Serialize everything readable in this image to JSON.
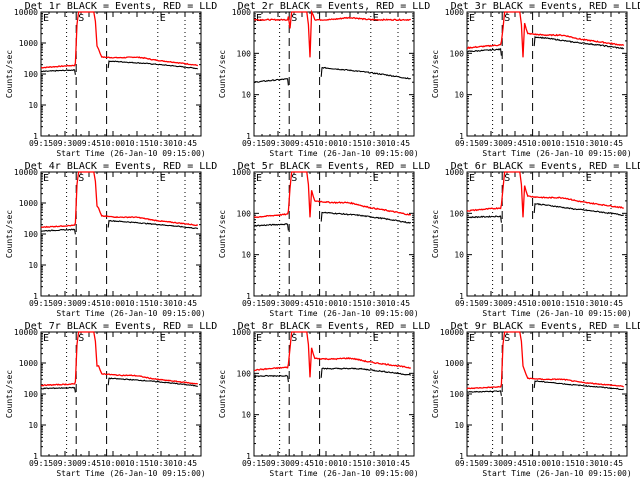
{
  "chart_data": {
    "type": "line",
    "layout": "3x3 grid",
    "title_suffix": "BLACK = Events, RED = LLD",
    "xlabel": "Start Time (26-Jan-10 09:15:00)",
    "ylabel": "Counts/sec",
    "x_range_minutes": [
      0,
      100
    ],
    "x_tick_labels": [
      "09:15",
      "09:30",
      "09:45",
      "10:00",
      "10:15",
      "10:30",
      "10:45"
    ],
    "x_tick_minutes": [
      0,
      15,
      30,
      45,
      60,
      75,
      90
    ],
    "yscale": "log",
    "markers": {
      "dotted_minutes": [
        16,
        73,
        90
      ],
      "dashed_minutes": [
        22,
        41
      ],
      "labels": [
        {
          "text": "E",
          "minute": 0
        },
        {
          "text": "S",
          "minute": 22
        },
        {
          "text": "E",
          "minute": 73
        }
      ]
    },
    "series_colors": {
      "events": "#000000",
      "lld": "#ff0000"
    },
    "legend": {
      "events": "BLACK = Events",
      "lld": "RED = LLD"
    },
    "panels": [
      {
        "title": "Det 1r",
        "ylim": [
          1,
          10000
        ],
        "y_tick_labels": [
          "1",
          "10",
          "100",
          "1000",
          "10000"
        ],
        "lld": {
          "pre": [
            160,
            190
          ],
          "peak": 10000,
          "post_start": 350,
          "mid": 300,
          "end": 190
        },
        "events": {
          "pre": [
            120,
            135
          ],
          "post_start": 260,
          "mid": 220,
          "end": 150
        }
      },
      {
        "title": "Det 2r",
        "ylim": [
          1,
          1000
        ],
        "y_tick_labels": [
          "1",
          "10",
          "100",
          "1000"
        ],
        "lld": {
          "pre": [
            650,
            650
          ],
          "peak": 1000,
          "post_start": 650,
          "mid": 650,
          "end": 650
        },
        "events": {
          "pre": [
            20,
            24
          ],
          "post_start": 45,
          "mid": 37,
          "end": 24
        }
      },
      {
        "title": "Det 3r",
        "ylim": [
          1,
          1000
        ],
        "y_tick_labels": [
          "1",
          "10",
          "100",
          "1000"
        ],
        "lld": {
          "pre": [
            135,
            160
          ],
          "peak": 1000,
          "post_start": 300,
          "mid": 230,
          "end": 155
        },
        "events": {
          "pre": [
            110,
            125
          ],
          "post_start": 250,
          "mid": 190,
          "end": 130
        }
      },
      {
        "title": "Det 4r",
        "ylim": [
          1,
          10000
        ],
        "y_tick_labels": [
          "1",
          "10",
          "100",
          "1000",
          "10000"
        ],
        "lld": {
          "pre": [
            165,
            190
          ],
          "peak": 10000,
          "post_start": 380,
          "mid": 290,
          "end": 190
        },
        "events": {
          "pre": [
            125,
            140
          ],
          "post_start": 270,
          "mid": 220,
          "end": 150
        }
      },
      {
        "title": "Det 5r",
        "ylim": [
          1,
          1000
        ],
        "y_tick_labels": [
          "1",
          "10",
          "100",
          "1000"
        ],
        "lld": {
          "pre": [
            80,
            95
          ],
          "peak": 1000,
          "post_start": 200,
          "mid": 150,
          "end": 90
        },
        "events": {
          "pre": [
            50,
            55
          ],
          "post_start": 105,
          "mid": 90,
          "end": 58
        }
      },
      {
        "title": "Det 6r",
        "ylim": [
          1,
          1000
        ],
        "y_tick_labels": [
          "1",
          "10",
          "100",
          "1000"
        ],
        "lld": {
          "pre": [
            115,
            135
          ],
          "peak": 1000,
          "post_start": 260,
          "mid": 200,
          "end": 135
        },
        "events": {
          "pre": [
            80,
            85
          ],
          "post_start": 170,
          "mid": 130,
          "end": 90
        }
      },
      {
        "title": "Det 7r",
        "ylim": [
          1,
          10000
        ],
        "y_tick_labels": [
          "1",
          "10",
          "100",
          "1000",
          "10000"
        ],
        "lld": {
          "pre": [
            190,
            210
          ],
          "peak": 10000,
          "post_start": 450,
          "mid": 320,
          "end": 210
        },
        "events": {
          "pre": [
            150,
            160
          ],
          "post_start": 320,
          "mid": 270,
          "end": 180
        }
      },
      {
        "title": "Det 8r",
        "ylim": [
          1,
          1000
        ],
        "y_tick_labels": [
          "1",
          "10",
          "100",
          "1000"
        ],
        "lld": {
          "pre": [
            120,
            140
          ],
          "peak": 1000,
          "post_start": 230,
          "mid": 200,
          "end": 135
        },
        "events": {
          "pre": [
            85,
            88
          ],
          "post_start": 130,
          "mid": 130,
          "end": 90
        }
      },
      {
        "title": "Det 9r",
        "ylim": [
          1,
          10000
        ],
        "y_tick_labels": [
          "1",
          "10",
          "100",
          "1000",
          "10000"
        ],
        "lld": {
          "pre": [
            150,
            170
          ],
          "peak": 10000,
          "post_start": 320,
          "mid": 250,
          "end": 175
        },
        "events": {
          "pre": [
            115,
            125
          ],
          "post_start": 260,
          "mid": 200,
          "end": 140
        }
      }
    ]
  }
}
